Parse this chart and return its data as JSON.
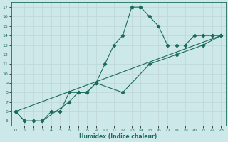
{
  "title": "",
  "xlabel": "Humidex (Indice chaleur)",
  "ylabel": "",
  "background_color": "#cde8e8",
  "line_color": "#1a6b5a",
  "grid_color": "#c0d8d8",
  "xlim": [
    -0.5,
    23.5
  ],
  "ylim": [
    4.5,
    17.5
  ],
  "xticks": [
    0,
    1,
    2,
    3,
    4,
    5,
    6,
    7,
    8,
    9,
    10,
    11,
    12,
    13,
    14,
    15,
    16,
    17,
    18,
    19,
    20,
    21,
    22,
    23
  ],
  "yticks": [
    5,
    6,
    7,
    8,
    9,
    10,
    11,
    12,
    13,
    14,
    15,
    16,
    17
  ],
  "series1_x": [
    0,
    1,
    2,
    3,
    4,
    5,
    6,
    7,
    8,
    9,
    10,
    11,
    12,
    13,
    14,
    15,
    16,
    17,
    18,
    19,
    20,
    21,
    22,
    23
  ],
  "series1_y": [
    6,
    5,
    5,
    5,
    6,
    6,
    8,
    8,
    8,
    9,
    11,
    13,
    14,
    17,
    17,
    16,
    15,
    13,
    13,
    13,
    14,
    14,
    14,
    14
  ],
  "series2_x": [
    0,
    1,
    3,
    6,
    7,
    8,
    9,
    12,
    15,
    18,
    21,
    23
  ],
  "series2_y": [
    6,
    5,
    5,
    7,
    8,
    8,
    9,
    8,
    11,
    12,
    13,
    14
  ],
  "series3_x": [
    0,
    23
  ],
  "series3_y": [
    6,
    14
  ]
}
